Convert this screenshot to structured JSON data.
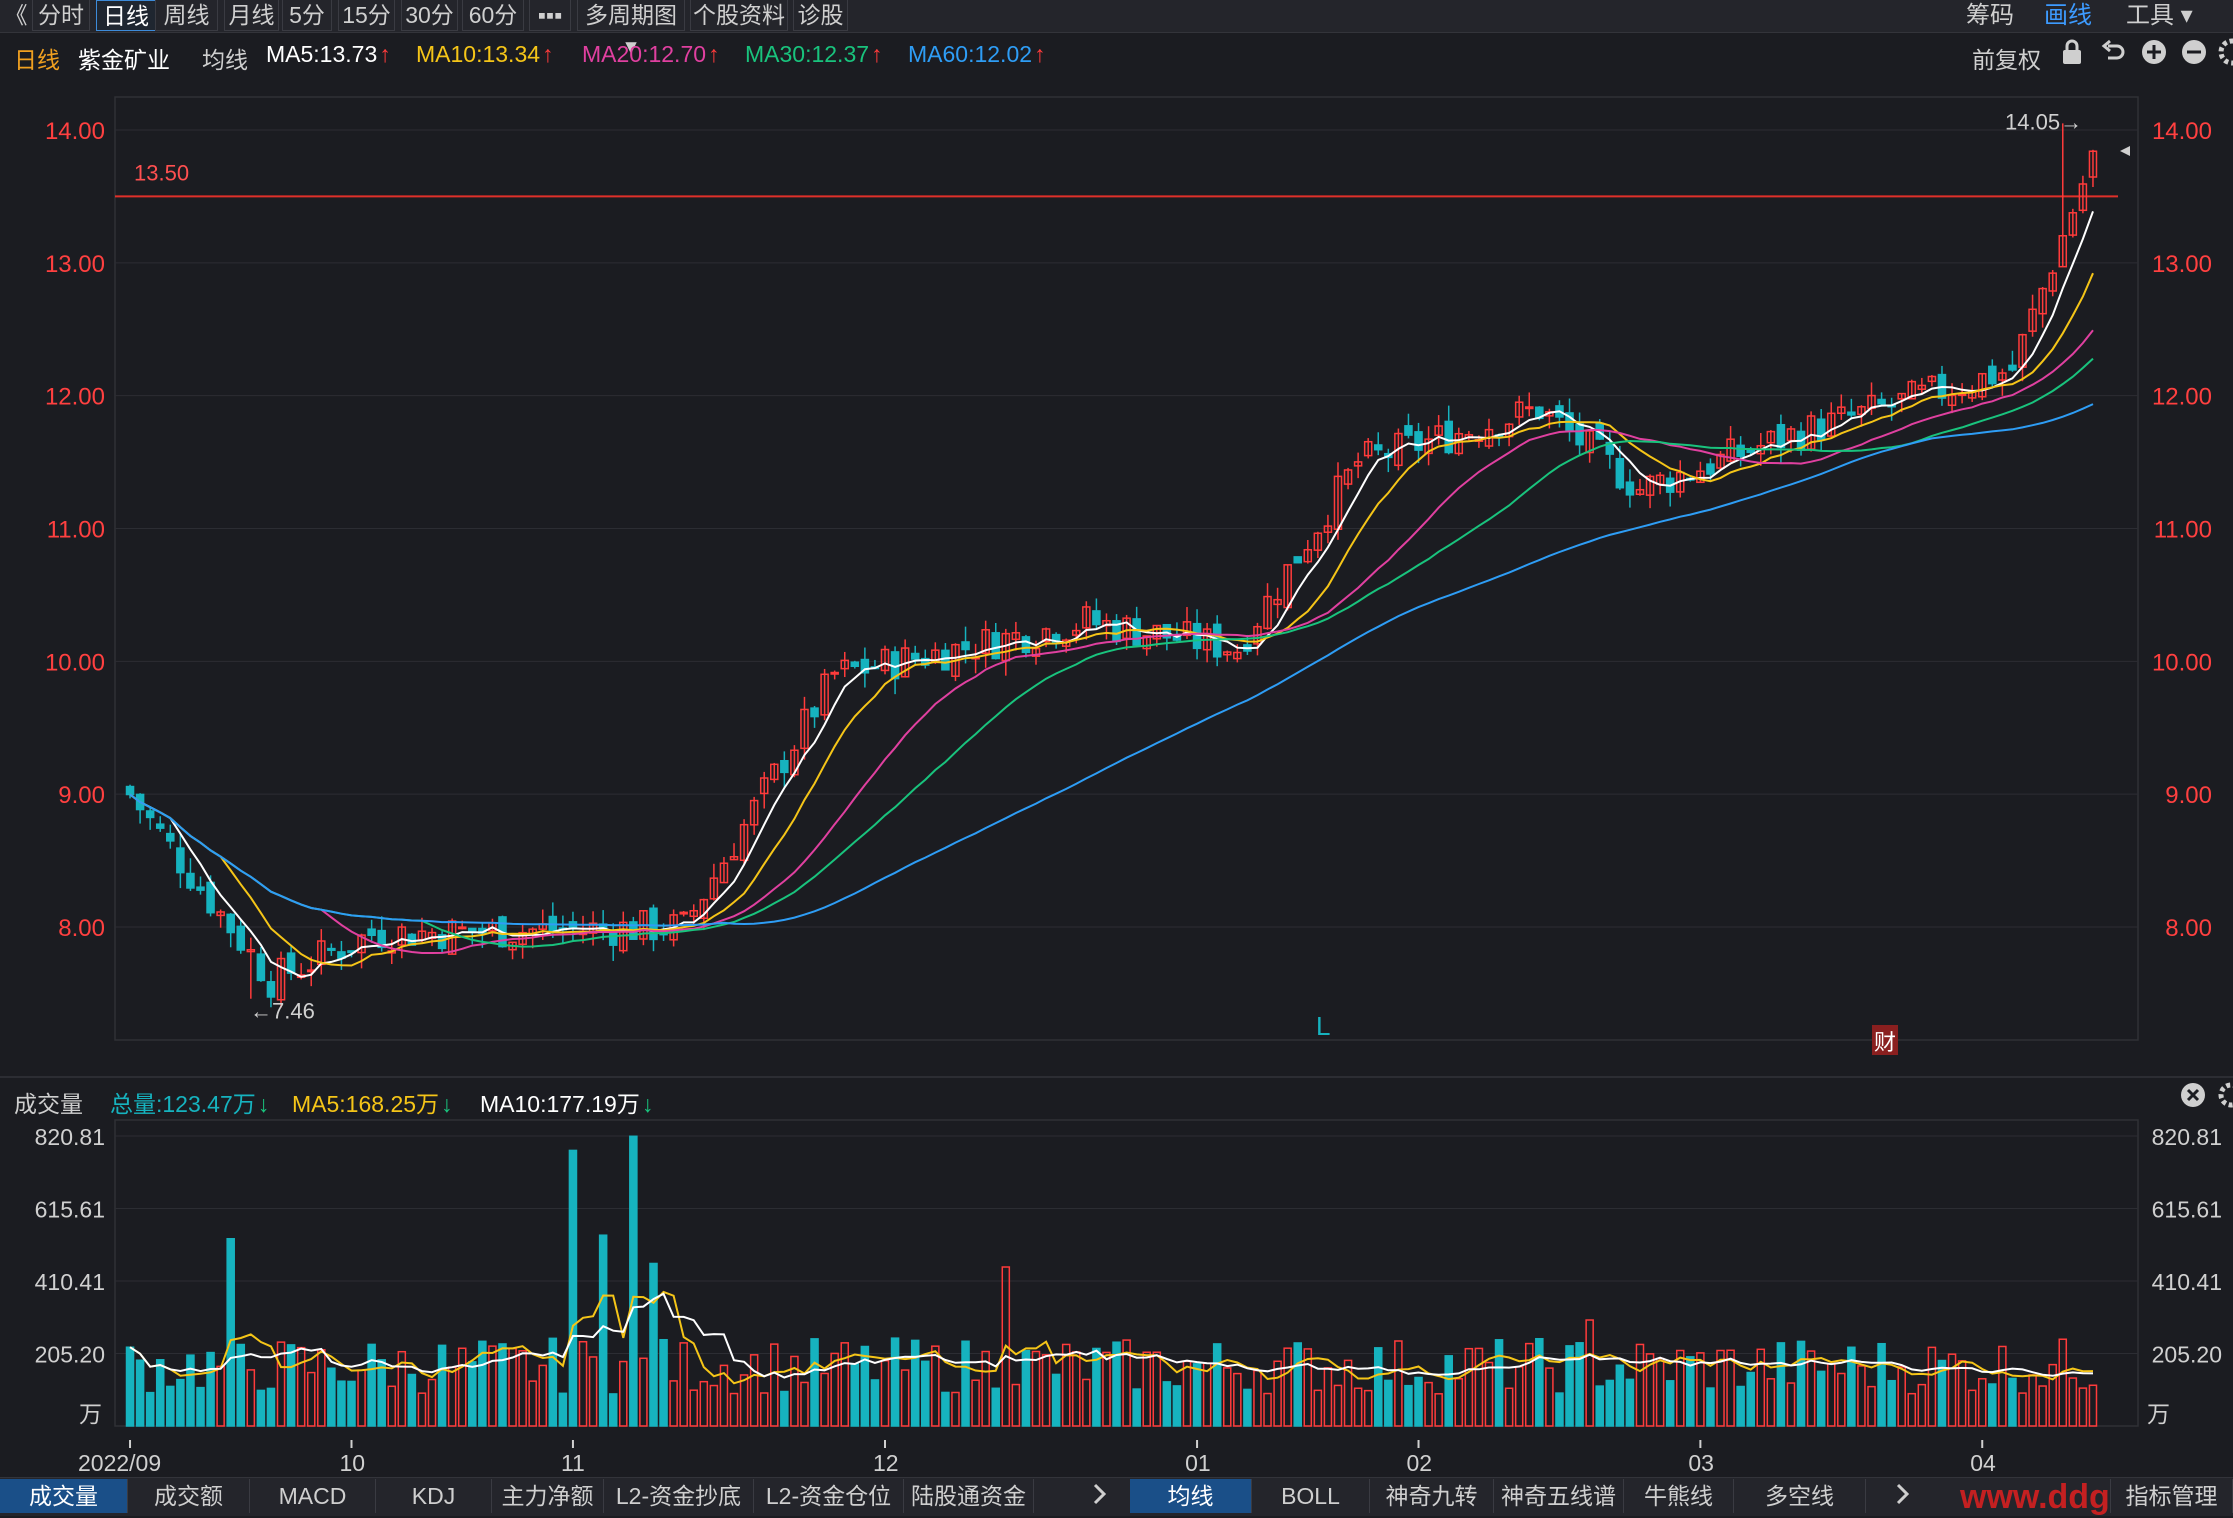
{
  "toolbar": {
    "back_glyph": "《",
    "tabs": [
      "分时",
      "日线",
      "周线",
      "月线",
      "5分",
      "15分",
      "30分",
      "60分",
      "▪▪▪",
      "多周期图 ▾",
      "个股资料",
      "诊股"
    ],
    "active_tab": "日线",
    "right": [
      "筹码",
      "画线",
      "工具 ▾"
    ]
  },
  "info": {
    "period": "日线",
    "stock_name": "紫金矿业",
    "ma_label": "均线",
    "ma_items": [
      {
        "text": "MA5:13.73",
        "color": "#ffffff",
        "trend": "↑"
      },
      {
        "text": "MA10:13.34",
        "color": "#f5c518",
        "trend": "↑"
      },
      {
        "text": "MA20:12.70",
        "color": "#e040a0",
        "trend": "↑"
      },
      {
        "text": "MA30:12.37",
        "color": "#19c37d",
        "trend": "↑"
      },
      {
        "text": "MA60:12.02",
        "color": "#2e9df5",
        "trend": "↑"
      }
    ],
    "adjust": "前复权"
  },
  "price_axis": {
    "ticks": [
      "14.00",
      "13.00",
      "12.00",
      "11.00",
      "10.00",
      "9.00",
      "8.00"
    ],
    "hline_label": "13.50",
    "max_marker": "14.05→",
    "min_marker": "←7.46",
    "event_L": "L",
    "event_cai": "财"
  },
  "volume": {
    "title": "成交量",
    "total": "总量:123.47万",
    "ma5": "MA5:168.25万",
    "ma10": "MA10:177.19万",
    "ticks": [
      "820.81",
      "615.61",
      "410.41",
      "205.20"
    ],
    "unit": "万"
  },
  "date_axis": [
    "2022/09",
    "10",
    "11",
    "12",
    "01",
    "02",
    "03",
    "04"
  ],
  "bottom_tabs_left": [
    "成交量",
    "成交额",
    "MACD",
    "KDJ",
    "主力净额",
    "L2-资金抄底",
    "L2-资金仓位",
    "陆股通资金"
  ],
  "bottom_tabs_right": [
    "均线",
    "BOLL",
    "神奇九转",
    "神奇五线谱",
    "牛熊线",
    "多空线"
  ],
  "bottom_right_label": "指标管理",
  "watermark": "www.ddg",
  "colors": {
    "up": "#ff3b3b",
    "down": "#16b3bf",
    "ma5": "#ffffff",
    "ma10": "#f5c518",
    "ma20": "#e040a0",
    "ma30": "#19c37d",
    "ma60": "#2e9df5",
    "accent": "#3d8bd9"
  },
  "chart_data": {
    "type": "candlestick",
    "title": "紫金矿业 日线",
    "ylim": [
      7.2,
      14.25
    ],
    "horizontal_line": 13.5,
    "ma_latest": {
      "MA5": 13.73,
      "MA10": 13.34,
      "MA20": 12.7,
      "MA30": 12.37,
      "MA60": 12.02
    },
    "session_high": 14.05,
    "session_low": 7.46,
    "anchors": [
      {
        "date": "2022/09",
        "close": 9.0
      },
      {
        "date": "2022/09 late",
        "close": 7.6
      },
      {
        "date": "10",
        "close": 7.95
      },
      {
        "date": "11",
        "close": 8.0
      },
      {
        "date": "11 mid",
        "close": 9.9
      },
      {
        "date": "12",
        "close": 10.3
      },
      {
        "date": "01",
        "close": 10.1
      },
      {
        "date": "01 mid",
        "close": 11.5
      },
      {
        "date": "02",
        "close": 11.9
      },
      {
        "date": "02 mid",
        "close": 11.3
      },
      {
        "date": "03",
        "close": 11.7
      },
      {
        "date": "04",
        "close": 12.2
      },
      {
        "date": "04 end",
        "close": 13.8
      }
    ],
    "volume_ylim": [
      0,
      820.81
    ],
    "volume_unit": "万"
  }
}
